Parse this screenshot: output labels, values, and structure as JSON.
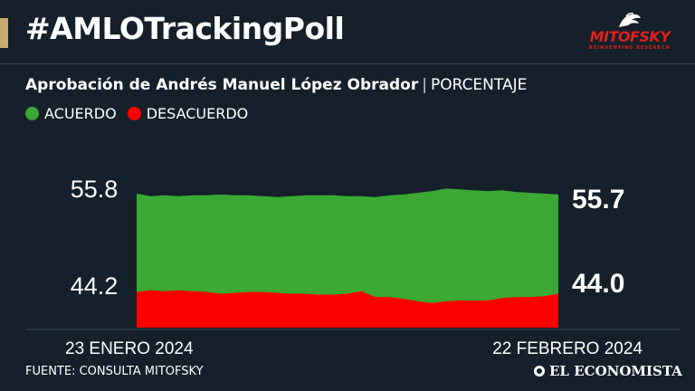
{
  "header": {
    "title": "#AMLOTrackingPoll"
  },
  "logo": {
    "name": "MITOFSKY",
    "tagline": "REINVENTING RESEARCH"
  },
  "subtitle": {
    "main": "Aprobación de Andrés Manuel López Obrador",
    "separator": "|",
    "unit": "PORCENTAJE"
  },
  "legend": [
    {
      "label": "ACUERDO",
      "color": "#3aa832"
    },
    {
      "label": "DESACUERDO",
      "color": "#ff0000"
    }
  ],
  "chart_data": {
    "type": "area",
    "title": "Aprobación de Andrés Manuel López Obrador",
    "ylabel": "PORCENTAJE",
    "x_start_label": "23 ENERO 2024",
    "x_end_label": "22 FEBRERO 2024",
    "left_labels": [
      "55.8",
      "44.2"
    ],
    "right_labels": [
      "55.7",
      "44.0"
    ],
    "ylim": [
      40,
      57.5
    ],
    "series": [
      {
        "name": "ACUERDO",
        "color": "#3aa832",
        "values": [
          55.8,
          55.5,
          55.6,
          55.5,
          55.6,
          55.6,
          55.7,
          55.6,
          55.6,
          55.5,
          55.4,
          55.5,
          55.6,
          55.6,
          55.6,
          55.5,
          55.5,
          55.4,
          55.6,
          55.7,
          55.9,
          56.1,
          56.4,
          56.3,
          56.2,
          56.1,
          56.2,
          56.0,
          55.9,
          55.8,
          55.7
        ]
      },
      {
        "name": "DESACUERDO",
        "color": "#ff0000",
        "values": [
          44.2,
          44.4,
          44.3,
          44.4,
          44.3,
          44.2,
          44.0,
          44.1,
          44.2,
          44.2,
          44.1,
          44.0,
          44.0,
          43.9,
          43.9,
          44.0,
          44.3,
          43.6,
          43.6,
          43.4,
          43.1,
          42.9,
          43.1,
          43.2,
          43.2,
          43.2,
          43.5,
          43.6,
          43.6,
          43.7,
          44.0
        ]
      }
    ]
  },
  "footer": {
    "source": "FUENTE: CONSULTA MITOFSKY"
  },
  "brand": {
    "name": "EL ECONOMISTA"
  }
}
